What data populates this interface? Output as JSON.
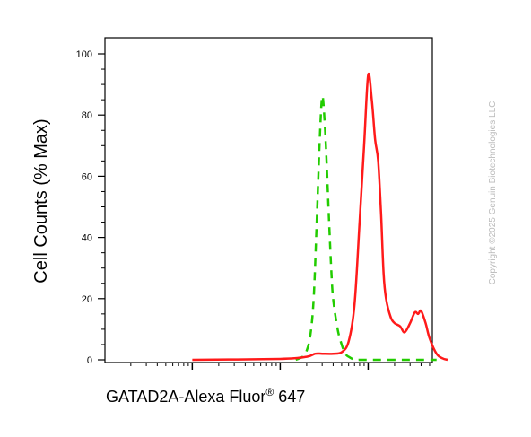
{
  "chart_data": {
    "type": "line",
    "title": "",
    "xlabel": "GATAD2A-Alexa Fluor",
    "xlabel_superscript": "®",
    "xlabel_suffix": " 647",
    "ylabel": "Cell Counts (% Max)",
    "ylim": [
      0,
      100
    ],
    "y_ticks": [
      "0",
      "20",
      "40",
      "60",
      "80",
      "100"
    ],
    "x_scale": "log",
    "grid": false,
    "legend": "none",
    "series": [
      {
        "color": "#22cc00",
        "style": "dashed",
        "x": [
          15,
          18,
          20,
          22,
          24,
          26,
          28,
          30,
          32,
          34,
          36,
          38,
          40,
          45,
          50,
          55,
          60,
          70,
          80,
          100,
          150,
          250,
          400,
          600
        ],
        "y": [
          0,
          1,
          3,
          8,
          20,
          45,
          70,
          86,
          78,
          62,
          45,
          30,
          20,
          10,
          5,
          2,
          1,
          0,
          0,
          0,
          0,
          0,
          0,
          0
        ]
      },
      {
        "color": "#ff1a1a",
        "style": "solid",
        "x": [
          1,
          10,
          20,
          25,
          30,
          40,
          50,
          60,
          70,
          80,
          90,
          100,
          110,
          120,
          130,
          140,
          150,
          160,
          180,
          200,
          230,
          260,
          300,
          340,
          370,
          400,
          450,
          500,
          600,
          700,
          800
        ],
        "y": [
          0,
          0.3,
          1,
          2,
          2,
          2,
          2.5,
          6,
          18,
          45,
          70,
          93,
          85,
          72,
          65,
          48,
          28,
          20,
          14,
          12,
          11,
          9,
          12,
          15.5,
          15,
          16,
          12,
          7,
          2,
          0.5,
          0
        ]
      }
    ],
    "annotation": "Copyright ©2025 Genuin Biotechnologies LLC"
  }
}
